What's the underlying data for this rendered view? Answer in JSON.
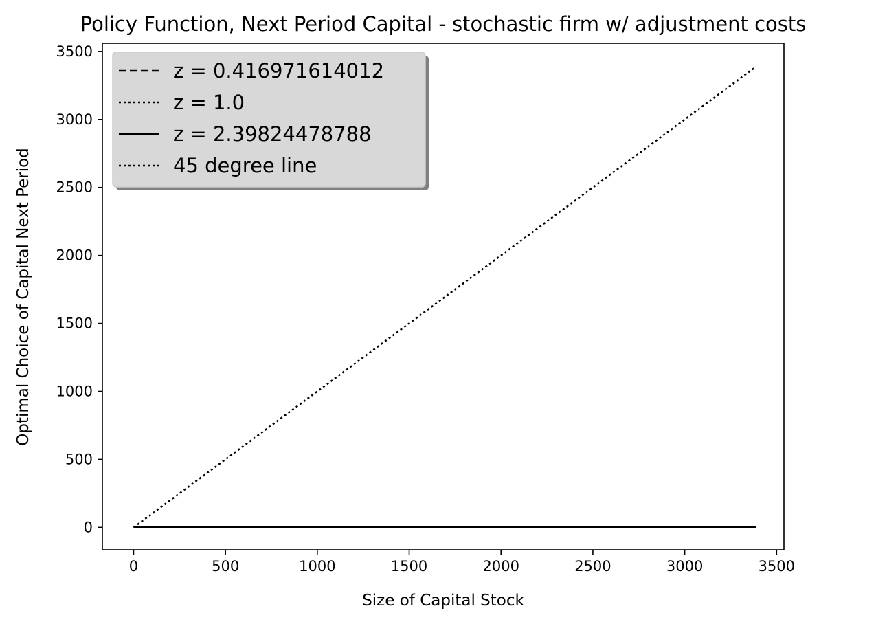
{
  "chart_data": {
    "type": "line",
    "title": "Policy Function, Next Period Capital - stochastic firm w/ adjustment costs",
    "xlabel": "Size of Capital Stock",
    "ylabel": "Optimal Choice of Capital Next Period",
    "xlim": [
      -170,
      3540
    ],
    "ylim": [
      -165,
      3560
    ],
    "xticks": [
      0,
      500,
      1000,
      1500,
      2000,
      2500,
      3000,
      3500
    ],
    "yticks": [
      0,
      500,
      1000,
      1500,
      2000,
      2500,
      3000,
      3500
    ],
    "xtick_labels": [
      "0",
      "500",
      "1000",
      "1500",
      "2000",
      "2500",
      "3000",
      "3500"
    ],
    "ytick_labels": [
      "0",
      "500",
      "1000",
      "1500",
      "2000",
      "2500",
      "3000",
      "3500"
    ],
    "grid": false,
    "legend_position": "upper-left",
    "series": [
      {
        "name": "z = 0.416971614012",
        "style": "dashed",
        "color": "#000000",
        "x": [
          0,
          3390
        ],
        "y": [
          0,
          0
        ]
      },
      {
        "name": "z = 1.0",
        "style": "dotted",
        "color": "#000000",
        "x": [
          0,
          3390
        ],
        "y": [
          0,
          0
        ]
      },
      {
        "name": "z = 2.39824478788",
        "style": "solid",
        "color": "#000000",
        "x": [
          0,
          3390
        ],
        "y": [
          0,
          0
        ]
      },
      {
        "name": "45 degree line",
        "style": "dotted",
        "color": "#000000",
        "x": [
          0,
          3390
        ],
        "y": [
          0,
          3390
        ]
      }
    ]
  }
}
